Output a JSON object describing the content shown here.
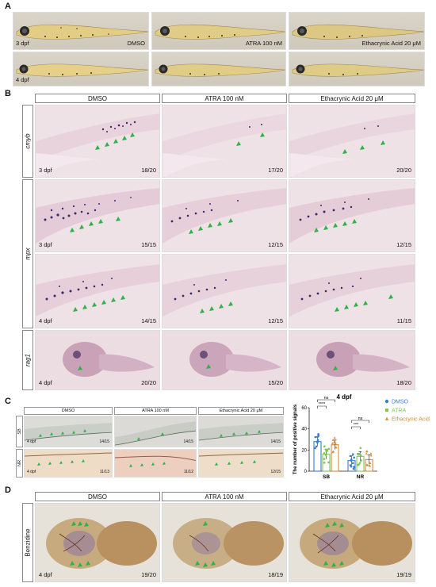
{
  "panels": {
    "A": "A",
    "B": "B",
    "C": "C",
    "D": "D"
  },
  "panel_a": {
    "conditions": [
      "DMSO",
      "ATRA 100 nM",
      "Ethacrynic Acid 20 μM"
    ],
    "stages": [
      "3 dpf",
      "4 dpf"
    ]
  },
  "panel_b": {
    "headers": [
      "DMSO",
      "ATRA 100 nM",
      "Ethacrynic Acid 20 μM"
    ],
    "genes": {
      "cmyb": "cmyb",
      "mpx": "mpx",
      "rag1": "rag1"
    },
    "rows": [
      {
        "stage": "3 dpf",
        "counts": [
          "18/20",
          "17/20",
          "20/20"
        ]
      },
      {
        "stage": "3 dpf",
        "counts": [
          "15/15",
          "12/15",
          "12/15"
        ]
      },
      {
        "stage": "4 dpf",
        "counts": [
          "14/15",
          "12/15",
          "11/15"
        ]
      },
      {
        "stage": "4 dpf",
        "counts": [
          "20/20",
          "15/20",
          "18/20"
        ]
      }
    ]
  },
  "panel_c": {
    "headers": [
      "DMSO",
      "ATRA 100 nM",
      "Ethacrynic Acid 20 μM"
    ],
    "rows": [
      {
        "label": "SB",
        "stage": "4 dpf",
        "counts": [
          "14/15",
          "14/15",
          "14/15"
        ]
      },
      {
        "label": "NR",
        "stage": "4 dpf",
        "counts": [
          "11/13",
          "11/12",
          "12/15"
        ]
      }
    ]
  },
  "chart_data": {
    "type": "bar",
    "title": "4 dpf",
    "ylabel": "The number of positive signals",
    "categories": [
      "SB",
      "NR"
    ],
    "ylim": [
      0,
      60
    ],
    "yticks": [
      "0",
      "20",
      "40",
      "60"
    ],
    "legend_position": "right",
    "series": [
      {
        "name": "DMSO",
        "color": "#3a7dc8",
        "marker": "circle",
        "values": [
          28,
          10
        ]
      },
      {
        "name": "ATRA",
        "color": "#7ec850",
        "marker": "square",
        "values": [
          16,
          14
        ]
      },
      {
        "name": "Ethacrynic Acid",
        "color": "#d98a3a",
        "marker": "triangle",
        "values": [
          25,
          11
        ]
      }
    ],
    "significance": [
      {
        "category": "SB",
        "labels": [
          "****",
          "ns"
        ]
      },
      {
        "category": "NR",
        "labels": [
          "***",
          "ns"
        ]
      }
    ]
  },
  "panel_d": {
    "headers": [
      "DMSO",
      "ATRA 100 nM",
      "Ethacrynic Acid 20 μM"
    ],
    "stain": "Benzidine",
    "stage": "4 dpf",
    "counts": [
      "19/20",
      "18/19",
      "19/19"
    ]
  },
  "colors": {
    "arrow": "#2db34a",
    "ish_stain": "#3b2a6e",
    "yolk": "#d8c277"
  }
}
